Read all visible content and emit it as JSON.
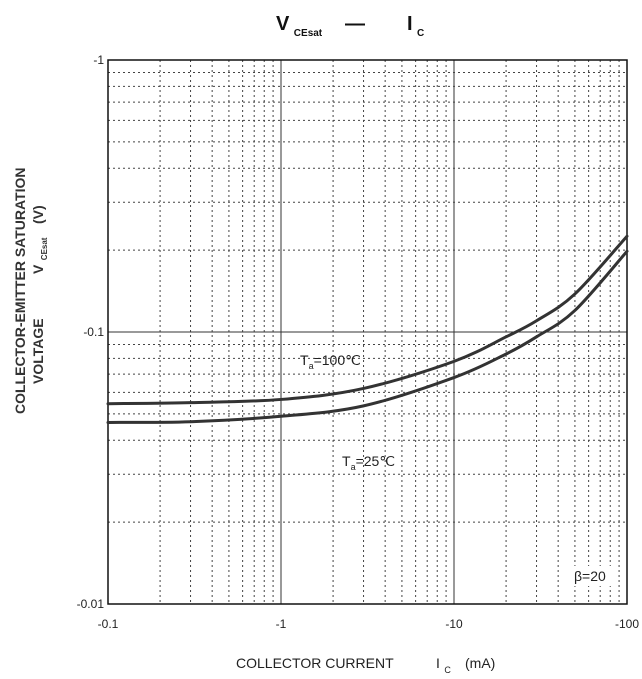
{
  "chart_data": {
    "type": "line",
    "title": {
      "left_main": "V",
      "left_sub": "CEsat",
      "dash": "—",
      "right_main": "I",
      "right_sub": "C"
    },
    "xlabel": {
      "main": "COLLECTOR CURRENT",
      "symbol": "I",
      "symbol_sub": "C",
      "unit": "(mA)"
    },
    "ylabel": {
      "line1": "COLLECTOR-EMITTER SATURATION",
      "line2_main": "VOLTAGE",
      "line2_symbol": "V",
      "line2_sub": "CEsat",
      "unit": "(V)"
    },
    "x_scale": "log",
    "y_scale": "log",
    "xlim": [
      -0.1,
      -100
    ],
    "ylim": [
      -0.01,
      -1
    ],
    "x_ticks": [
      "-0.1",
      "-1",
      "-10",
      "-100"
    ],
    "y_ticks": [
      "-1",
      "-0.1",
      "-0.01"
    ],
    "grid": true,
    "annotation": "β=20",
    "series": [
      {
        "name": "Ta=100℃",
        "label_main": "T",
        "label_sub": "a",
        "label_rest": "=100℃",
        "x": [
          -0.1,
          -0.3,
          -1,
          -3,
          -10,
          -20,
          -30,
          -50,
          -100
        ],
        "y": [
          -0.0545,
          -0.055,
          -0.0565,
          -0.062,
          -0.078,
          -0.096,
          -0.11,
          -0.138,
          -0.225
        ]
      },
      {
        "name": "Ta=25℃",
        "label_main": "T",
        "label_sub": "a",
        "label_rest": "=25℃",
        "x": [
          -0.1,
          -0.3,
          -1,
          -3,
          -10,
          -20,
          -30,
          -50,
          -100
        ],
        "y": [
          -0.0465,
          -0.0468,
          -0.049,
          -0.0535,
          -0.068,
          -0.083,
          -0.096,
          -0.12,
          -0.198
        ]
      }
    ]
  }
}
